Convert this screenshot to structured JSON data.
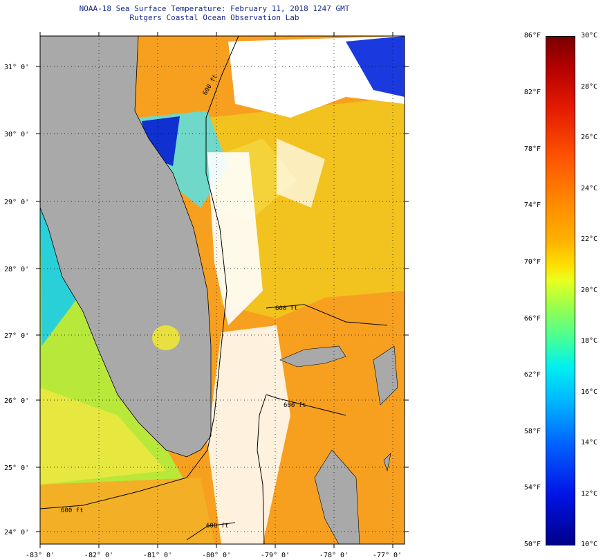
{
  "title": {
    "line1": "NOAA-18 Sea Surface Temperature:  February 11, 2018 1247 GMT",
    "line2": "Rutgers Coastal Ocean Observation Lab"
  },
  "map": {
    "lat_labels": [
      "31° 0'",
      "30° 0'",
      "29° 0'",
      "28° 0'",
      "27° 0'",
      "26° 0'",
      "25° 0'",
      "24° 0'"
    ],
    "lon_labels": [
      "-83° 0'",
      "-82° 0'",
      "-81° 0'",
      "-80° 0'",
      "-79° 0'",
      "-78° 0'",
      "-77° 0'"
    ],
    "depth_labels": [
      "600 ft",
      "600 ft",
      "600 ft",
      "600 ft",
      "600 ft"
    ],
    "colors": {
      "land": "#a9a9a9",
      "cloud": "#ffffff",
      "warm_water": "#f7a020",
      "mid_water": "#f2c21f",
      "cool_water": "#b8e83a",
      "cold_water": "#2ad0d8",
      "coldest_water": "#1030d0"
    }
  },
  "colorbar": {
    "fahrenheit": [
      "86°F",
      "82°F",
      "78°F",
      "74°F",
      "70°F",
      "66°F",
      "62°F",
      "58°F",
      "54°F",
      "50°F"
    ],
    "celsius": [
      "30°C",
      "28°C",
      "26°C",
      "24°C",
      "22°C",
      "20°C",
      "18°C",
      "16°C",
      "14°C",
      "12°C",
      "10°C"
    ]
  }
}
